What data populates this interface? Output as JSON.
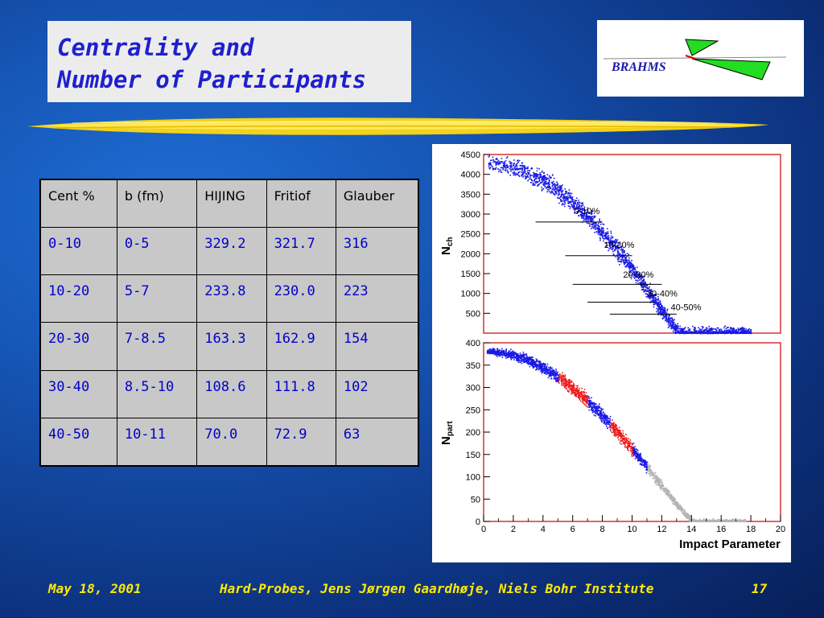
{
  "slide": {
    "title_line1": "Centrality and",
    "title_line2": "Number of Participants",
    "logo_text": "BRAHMS"
  },
  "table": {
    "headers": [
      "Cent %",
      "b (fm)",
      "HIJING",
      "Fritiof",
      "Glauber"
    ],
    "rows": [
      [
        "0-10",
        "0-5",
        "329.2",
        "321.7",
        "316"
      ],
      [
        "10-20",
        "5-7",
        "233.8",
        "230.0",
        "223"
      ],
      [
        "20-30",
        "7-8.5",
        "163.3",
        "162.9",
        "154"
      ],
      [
        "30-40",
        "8.5-10",
        "108.6",
        "111.8",
        "102"
      ],
      [
        "40-50",
        "10-11",
        "70.0",
        "72.9",
        "63"
      ]
    ]
  },
  "plots": {
    "top": {
      "ylabel_main": "N",
      "ylabel_sub": "ch",
      "yticks": [
        "4500",
        "4000",
        "3500",
        "3000",
        "2500",
        "2000",
        "1500",
        "1000",
        "500"
      ],
      "annotations": [
        "0-10%",
        "10-20%",
        "20-30%",
        "30-40%",
        "40-50%"
      ]
    },
    "bottom": {
      "ylabel_main": "N",
      "ylabel_sub": "part",
      "yticks": [
        "400",
        "350",
        "300",
        "250",
        "200",
        "150",
        "100",
        "50",
        "0"
      ],
      "xticks": [
        "0",
        "2",
        "4",
        "6",
        "8",
        "10",
        "12",
        "14",
        "16",
        "18",
        "20"
      ],
      "xlabel": "Impact Parameter"
    },
    "colors": {
      "blue": "#1a1ae6",
      "red": "#ee1c1c",
      "gray": "#b4b4b4",
      "frame": "#cc0000"
    }
  },
  "footer": {
    "date": "May 18, 2001",
    "center": "Hard-Probes, Jens Jørgen Gaardhøje, Niels Bohr Institute",
    "page": "17"
  }
}
